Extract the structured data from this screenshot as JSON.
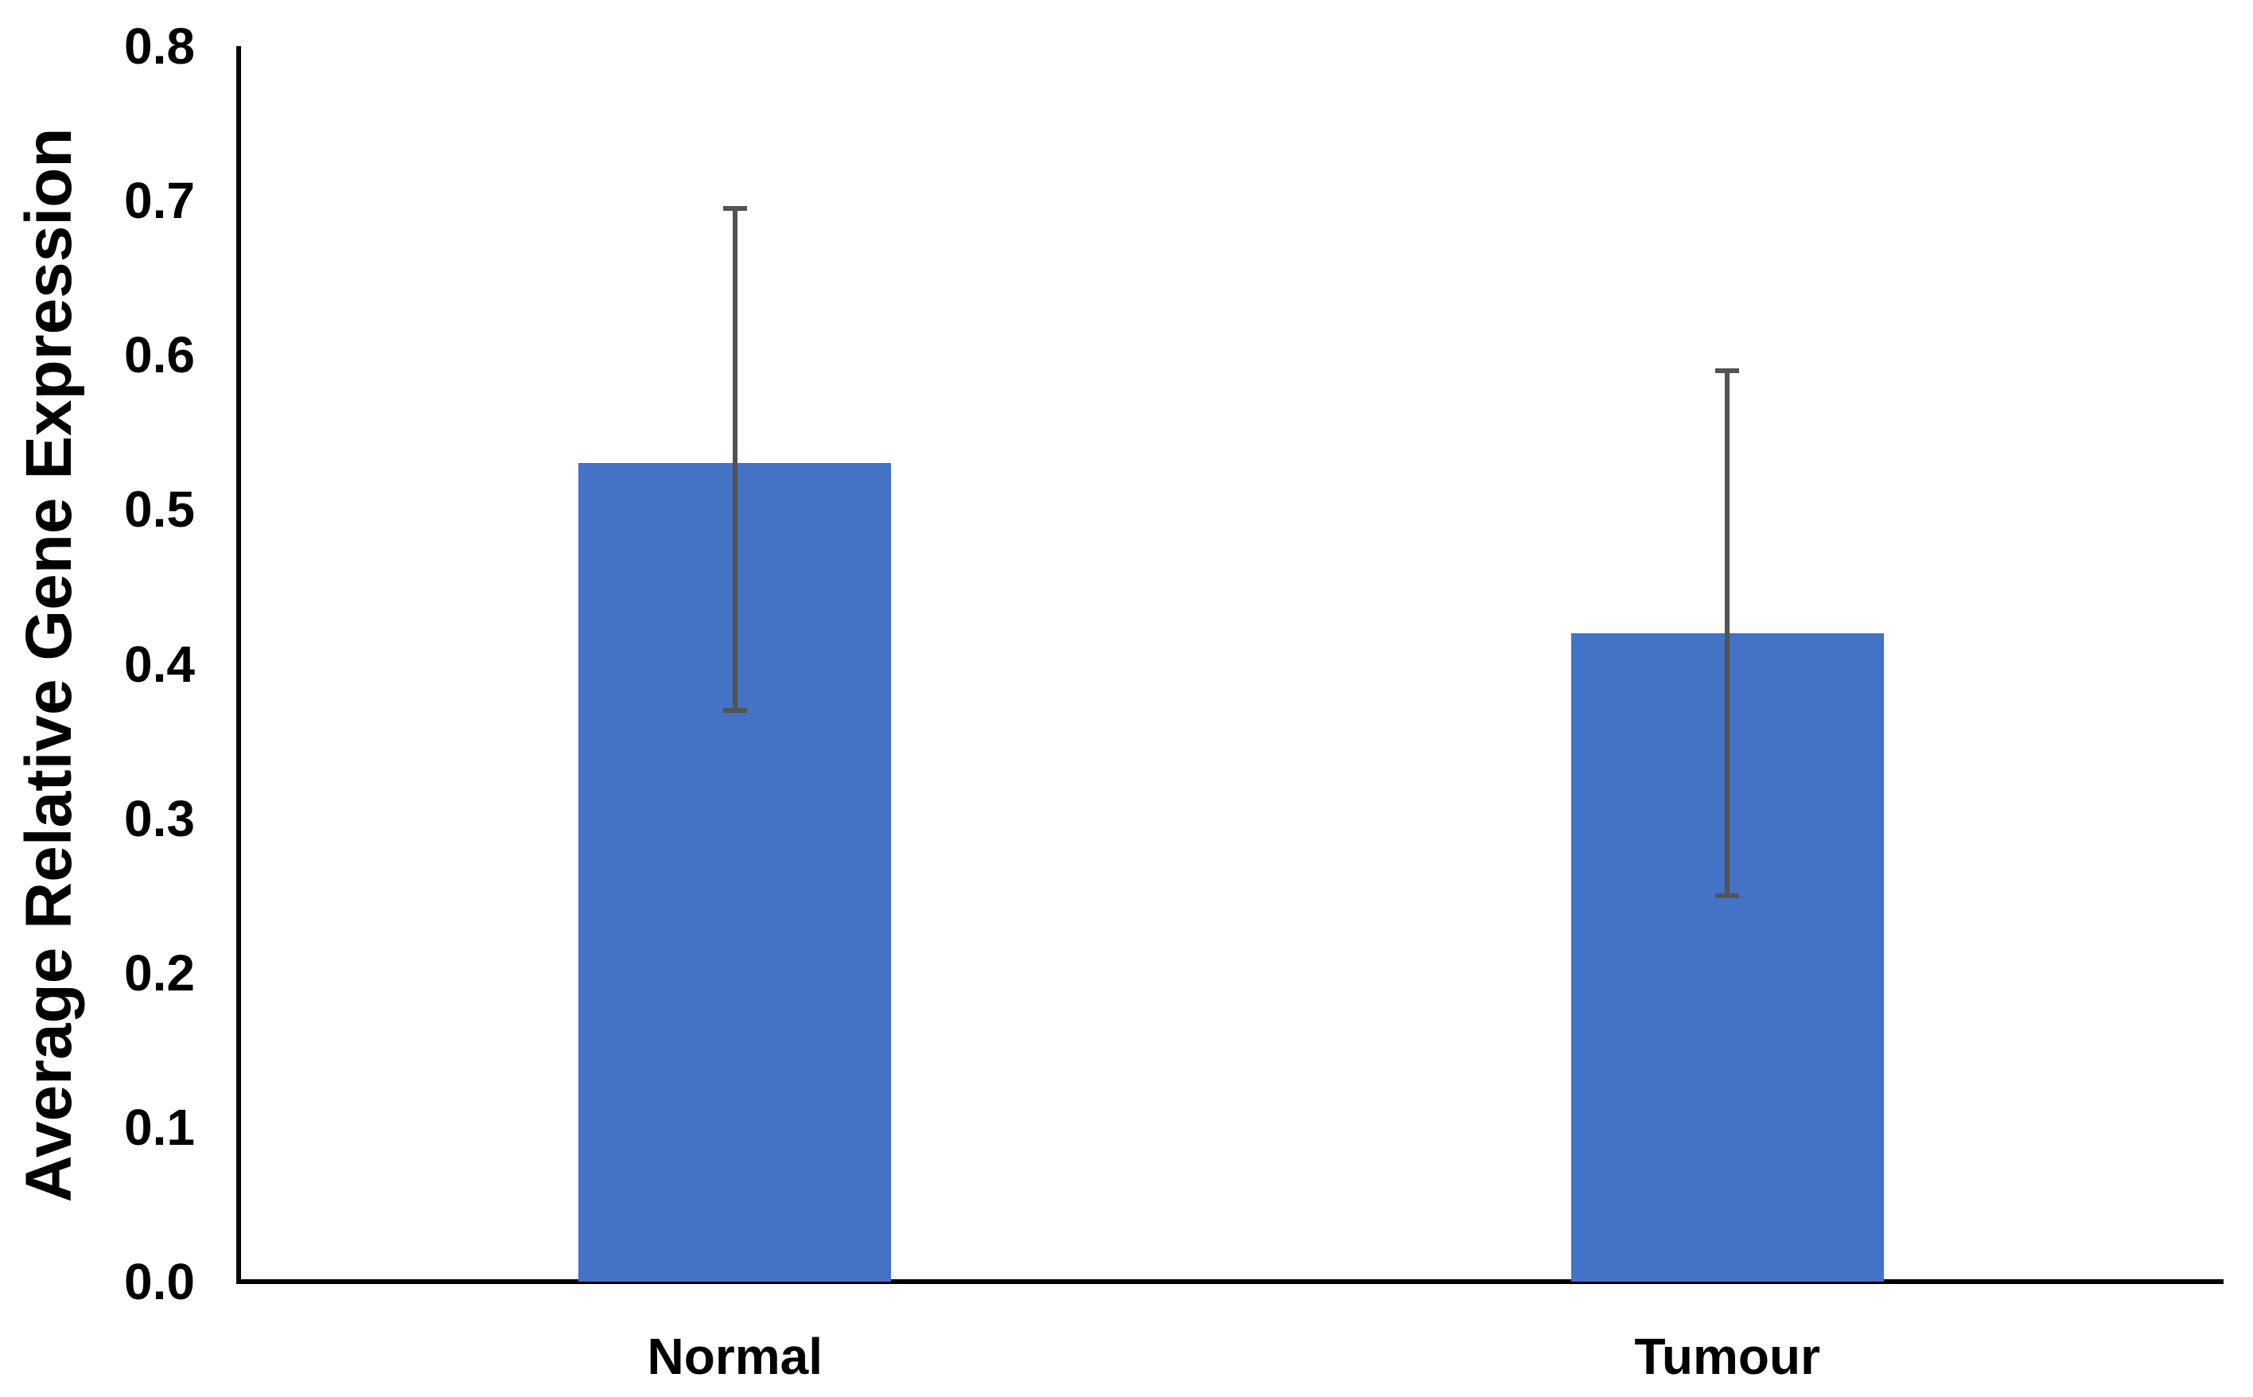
{
  "figure": {
    "background_color": "#ffffff"
  },
  "chart_data": {
    "type": "bar",
    "title": "",
    "xlabel": "",
    "ylabel": "Average Relative Gene Expression",
    "categories": [
      "Normal",
      "Tumour"
    ],
    "values": [
      0.53,
      0.42
    ],
    "error_low": [
      0.37,
      0.25
    ],
    "error_high": [
      0.695,
      0.59
    ],
    "ylim": [
      0.0,
      0.8
    ],
    "ytick_step": 0.1,
    "ytick_labels": [
      "0.0",
      "0.1",
      "0.2",
      "0.3",
      "0.4",
      "0.5",
      "0.6",
      "0.7",
      "0.8"
    ],
    "grid": "off",
    "legend_position": "none",
    "bar_color": "#4472C4",
    "error_bar_color": "#535353",
    "axis_color": "#000000",
    "text_color": "#000000"
  }
}
